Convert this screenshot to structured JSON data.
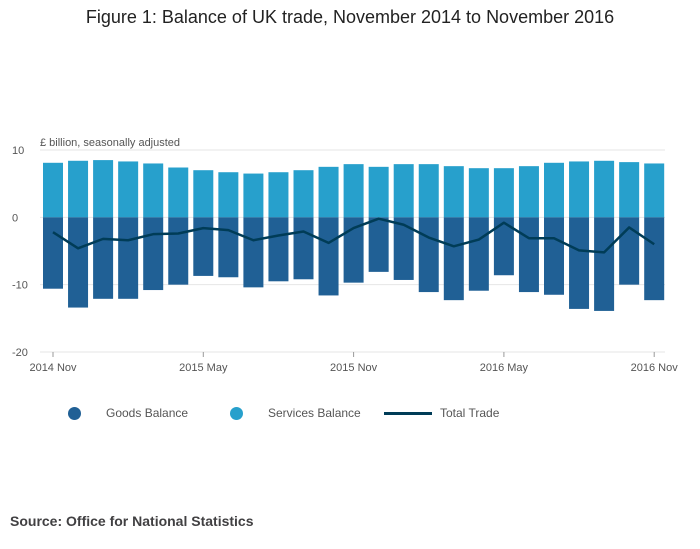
{
  "title": "Figure 1: Balance of UK trade, November 2014 to November 2016",
  "source": "Source: Office for National Statistics",
  "colors": {
    "goods": "#206095",
    "services": "#27a0cc",
    "total": "#003c57",
    "grid": "#e6e6e6"
  },
  "legend": [
    {
      "label": "Goods Balance",
      "marker": "dot",
      "color": "#206095"
    },
    {
      "label": "Services Balance",
      "marker": "dot",
      "color": "#27a0cc"
    },
    {
      "label": "Total Trade",
      "marker": "line",
      "color": "#003c57"
    }
  ],
  "chart_data": {
    "type": "bar",
    "stacked": true,
    "ylabel": "£ billion, seasonally adjusted",
    "ylim": [
      -20,
      10
    ],
    "yticks": [
      10,
      0,
      -10,
      -20
    ],
    "xtick_labels": [
      "2014 Nov",
      "2015 May",
      "2015 Nov",
      "2016 May",
      "2016 Nov"
    ],
    "xtick_indices": [
      0,
      6,
      12,
      18,
      24
    ],
    "categories": [
      "2014 Nov",
      "2014 Dec",
      "2015 Jan",
      "2015 Feb",
      "2015 Mar",
      "2015 Apr",
      "2015 May",
      "2015 Jun",
      "2015 Jul",
      "2015 Aug",
      "2015 Sep",
      "2015 Oct",
      "2015 Nov",
      "2015 Dec",
      "2016 Jan",
      "2016 Feb",
      "2016 Mar",
      "2016 Apr",
      "2016 May",
      "2016 Jun",
      "2016 Jul",
      "2016 Aug",
      "2016 Sep",
      "2016 Oct",
      "2016 Nov"
    ],
    "grid": true,
    "legend_position": "bottom",
    "series": [
      {
        "name": "Goods Balance",
        "type": "bar",
        "values": [
          -10.6,
          -13.4,
          -12.1,
          -12.1,
          -10.8,
          -10.0,
          -8.7,
          -8.9,
          -10.4,
          -9.5,
          -9.2,
          -11.6,
          -9.7,
          -8.1,
          -9.3,
          -11.1,
          -12.3,
          -10.9,
          -8.6,
          -11.1,
          -11.5,
          -13.6,
          -13.9,
          -10.0,
          -12.3
        ]
      },
      {
        "name": "Services Balance",
        "type": "bar",
        "values": [
          8.1,
          8.4,
          8.5,
          8.3,
          8.0,
          7.4,
          7.0,
          6.7,
          6.5,
          6.7,
          7.0,
          7.5,
          7.9,
          7.5,
          7.9,
          7.9,
          7.6,
          7.3,
          7.3,
          7.6,
          8.1,
          8.3,
          8.4,
          8.2,
          8.0
        ]
      },
      {
        "name": "Total Trade",
        "type": "line",
        "values": [
          -2.2,
          -4.6,
          -3.2,
          -3.4,
          -2.5,
          -2.4,
          -1.6,
          -1.9,
          -3.4,
          -2.7,
          -2.1,
          -3.8,
          -1.6,
          -0.2,
          -1.1,
          -3.0,
          -4.3,
          -3.3,
          -0.8,
          -3.1,
          -3.1,
          -4.9,
          -5.2,
          -1.5,
          -4.0
        ]
      }
    ]
  }
}
